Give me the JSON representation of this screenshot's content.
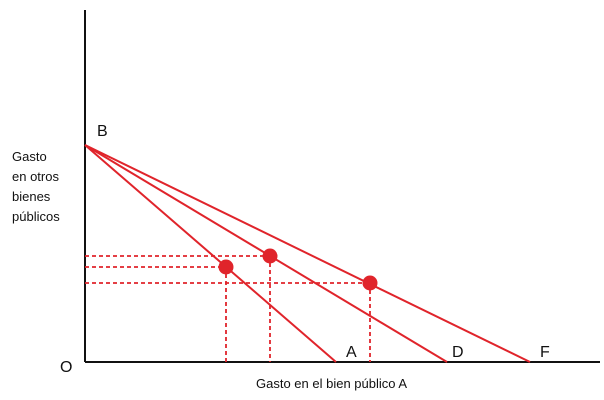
{
  "labels": {
    "origin": "O",
    "vertex": "B",
    "intercepts": [
      "A",
      "D",
      "F"
    ],
    "y_axis": [
      "Gasto",
      "en otros",
      "bienes",
      "públicos"
    ],
    "x_axis": "Gasto en el bien público A"
  },
  "colors": {
    "lines": "#e0242b",
    "axes": "#111111",
    "text": "#111111"
  },
  "budget_lines": [
    {
      "from": "B",
      "to": "A"
    },
    {
      "from": "B",
      "to": "D"
    },
    {
      "from": "B",
      "to": "F"
    }
  ],
  "equilibrium_points": [
    {
      "on_line": "BA"
    },
    {
      "on_line": "BD"
    },
    {
      "on_line": "BF"
    }
  ]
}
